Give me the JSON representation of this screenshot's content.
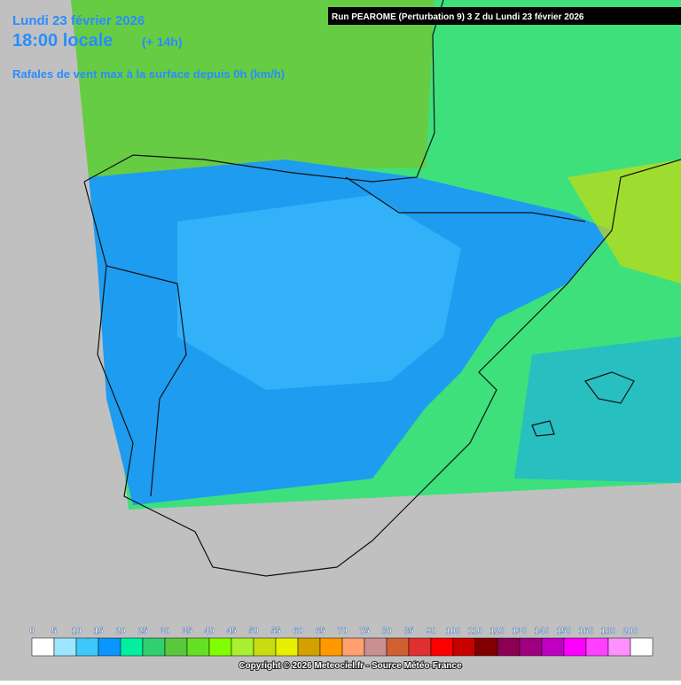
{
  "header": {
    "date": "Lundi 23 février 2026",
    "time": "18:00 locale",
    "offset": "(+ 14h)",
    "subtitle": "Rafales de vent max à la surface depuis 0h (km/h)"
  },
  "run": "Run PEAROME (Perturbation 9) 3 Z du Lundi 23 février 2026",
  "legend": {
    "labels": [
      0,
      5,
      10,
      15,
      20,
      25,
      30,
      35,
      40,
      45,
      50,
      55,
      60,
      65,
      70,
      75,
      80,
      85,
      90,
      100,
      110,
      120,
      130,
      140,
      150,
      160,
      180,
      200
    ],
    "colors": [
      "#ffffff",
      "#9ee6ff",
      "#3cc8f8",
      "#0a96ff",
      "#00f0a0",
      "#30d070",
      "#5ac83c",
      "#66e022",
      "#80ff00",
      "#a8f030",
      "#c8dc10",
      "#e6f000",
      "#d4a000",
      "#ff9900",
      "#ffa070",
      "#c89090",
      "#d06030",
      "#e03030",
      "#ff0000",
      "#c80000",
      "#800000",
      "#8b0050",
      "#a00080",
      "#c000c0",
      "#ff00ff",
      "#ff40ff",
      "#ff90ff",
      "#ffffff"
    ]
  },
  "copyright": "Copyright © 2026 Meteociel.fr - Source Météo-France"
}
